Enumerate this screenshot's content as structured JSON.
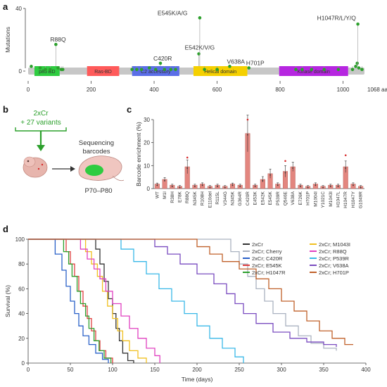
{
  "panel_labels": {
    "a": "a",
    "b": "b",
    "c": "c",
    "d": "d"
  },
  "colors": {
    "lollipop": "#2ca02c",
    "bar": "#e3867f",
    "red_dot": "#d62728",
    "arrow": "#2ca02c"
  },
  "chart_data": [
    {
      "type": "lollipop",
      "panel": "a",
      "ylabel": "Mutations",
      "ylim": [
        0,
        40
      ],
      "yticks": [
        0,
        40
      ],
      "xlim": [
        0,
        1068
      ],
      "xticks": [
        0,
        200,
        400,
        600,
        800,
        1000
      ],
      "x_end_label": "1068 aa",
      "domains": [
        {
          "label": "p85 BD",
          "start": 20,
          "end": 100,
          "color": "#2ecc40"
        },
        {
          "label": "Ras-BD",
          "start": 187,
          "end": 289,
          "color": "#ff5a5a"
        },
        {
          "label": "C2 accessory",
          "start": 330,
          "end": 480,
          "color": "#5b6ee8"
        },
        {
          "label": "Helical domain",
          "start": 525,
          "end": 696,
          "color": "#f5d000"
        },
        {
          "label": "Kinase domain",
          "start": 797,
          "end": 1016,
          "color": "#b626e0"
        }
      ],
      "mutations": [
        {
          "pos": 10,
          "count": 3
        },
        {
          "pos": 38,
          "count": 2
        },
        {
          "pos": 55,
          "count": 1
        },
        {
          "pos": 70,
          "count": 1
        },
        {
          "pos": 88,
          "count": 17,
          "label": "R88Q"
        },
        {
          "pos": 95,
          "count": 2
        },
        {
          "pos": 105,
          "count": 1
        },
        {
          "pos": 110,
          "count": 1
        },
        {
          "pos": 330,
          "count": 1
        },
        {
          "pos": 345,
          "count": 1
        },
        {
          "pos": 360,
          "count": 1
        },
        {
          "pos": 385,
          "count": 2
        },
        {
          "pos": 405,
          "count": 1
        },
        {
          "pos": 420,
          "count": 5,
          "label": "C420R"
        },
        {
          "pos": 433,
          "count": 1
        },
        {
          "pos": 453,
          "count": 1
        },
        {
          "pos": 468,
          "count": 1
        },
        {
          "pos": 542,
          "count": 11,
          "label": "E542K/V/G"
        },
        {
          "pos": 545,
          "count": 34,
          "label": "E545K/A/G"
        },
        {
          "pos": 560,
          "count": 1
        },
        {
          "pos": 600,
          "count": 1
        },
        {
          "pos": 640,
          "count": 3,
          "label": "V638A"
        },
        {
          "pos": 701,
          "count": 2,
          "label": "H701P"
        },
        {
          "pos": 850,
          "count": 1
        },
        {
          "pos": 870,
          "count": 1
        },
        {
          "pos": 900,
          "count": 1
        },
        {
          "pos": 940,
          "count": 1
        },
        {
          "pos": 985,
          "count": 1
        },
        {
          "pos": 1030,
          "count": 1
        },
        {
          "pos": 1040,
          "count": 3
        },
        {
          "pos": 1045,
          "count": 5
        },
        {
          "pos": 1047,
          "count": 30,
          "label": "H1047R/L/Y/Q"
        },
        {
          "pos": 1050,
          "count": 2
        },
        {
          "pos": 1060,
          "count": 1
        }
      ]
    },
    {
      "type": "bar",
      "panel": "c",
      "ylabel": "Barcode enrichment (%)",
      "ylim": [
        0,
        30
      ],
      "yticks": [
        0,
        10,
        20,
        30
      ],
      "categories": [
        "WT",
        "M1I",
        "R38H",
        "E78K",
        "R88Q",
        "N345K",
        "R108H",
        "E110del",
        "R115L",
        "V344G",
        "N345K",
        "G364R",
        "C420R",
        "E453K",
        "E542K",
        "E545K",
        "P539R",
        "Q546E",
        "V638A",
        "E726K",
        "H701P",
        "M1004I",
        "Y1021C",
        "M1043I",
        "H1047L",
        "H1047R",
        "H1047Y",
        "G1049R"
      ],
      "values": [
        2.0,
        4.0,
        1.5,
        1.0,
        9.5,
        1.5,
        2.0,
        1.0,
        1.5,
        1.0,
        2.0,
        1.5,
        24.0,
        1.5,
        4.0,
        6.5,
        2.0,
        7.5,
        9.5,
        1.5,
        1.0,
        2.0,
        1.0,
        1.5,
        1.5,
        9.5,
        2.0,
        1.0
      ],
      "errors": [
        0.4,
        0.8,
        0.4,
        0.3,
        3.0,
        0.4,
        0.5,
        0.3,
        0.4,
        0.3,
        0.4,
        0.4,
        8.0,
        0.4,
        1.2,
        2.0,
        0.5,
        2.5,
        2.0,
        0.4,
        0.3,
        0.5,
        0.3,
        0.4,
        0.4,
        2.5,
        0.5,
        0.3
      ],
      "outliers": [
        {
          "index": 4,
          "value": 13.5
        },
        {
          "index": 12,
          "value": 36
        },
        {
          "index": 17,
          "value": 12
        },
        {
          "index": 25,
          "value": 14.5
        }
      ]
    },
    {
      "type": "line",
      "panel": "d",
      "subtype": "kaplan-meier",
      "xlabel": "Time (days)",
      "ylabel": "Survival (%)",
      "xlim": [
        0,
        400
      ],
      "ylim": [
        0,
        100
      ],
      "xticks": [
        0,
        50,
        100,
        150,
        200,
        250,
        300,
        350,
        400
      ],
      "yticks": [
        0,
        20,
        40,
        60,
        80,
        100
      ],
      "series": [
        {
          "name": "2xCr",
          "color": "#333333",
          "steps": [
            [
              0,
              100
            ],
            [
              75,
              100
            ],
            [
              80,
              92
            ],
            [
              85,
              80
            ],
            [
              90,
              66
            ],
            [
              95,
              52
            ],
            [
              100,
              40
            ],
            [
              104,
              28
            ],
            [
              108,
              18
            ],
            [
              112,
              8
            ],
            [
              118,
              2
            ],
            [
              125,
              0
            ]
          ]
        },
        {
          "name": "2xCr; Cherry",
          "color": "#aab2c0",
          "steps": [
            [
              0,
              100
            ],
            [
              230,
              100
            ],
            [
              240,
              90
            ],
            [
              250,
              80
            ],
            [
              260,
              70
            ],
            [
              270,
              60
            ],
            [
              280,
              50
            ],
            [
              290,
              40
            ],
            [
              305,
              30
            ],
            [
              320,
              22
            ],
            [
              335,
              16
            ],
            [
              350,
              12
            ],
            [
              365,
              10
            ]
          ]
        },
        {
          "name": "2xCr; C420R",
          "color": "#2960c8",
          "steps": [
            [
              0,
              100
            ],
            [
              25,
              100
            ],
            [
              32,
              88
            ],
            [
              40,
              75
            ],
            [
              45,
              62
            ],
            [
              50,
              50
            ],
            [
              55,
              40
            ],
            [
              60,
              30
            ],
            [
              65,
              22
            ],
            [
              72,
              15
            ],
            [
              80,
              8
            ],
            [
              88,
              3
            ],
            [
              95,
              0
            ]
          ]
        },
        {
          "name": "2xCr; E545K",
          "color": "#e04040",
          "steps": [
            [
              0,
              100
            ],
            [
              40,
              100
            ],
            [
              45,
              90
            ],
            [
              50,
              80
            ],
            [
              55,
              70
            ],
            [
              60,
              58
            ],
            [
              65,
              46
            ],
            [
              70,
              36
            ],
            [
              75,
              26
            ],
            [
              80,
              18
            ],
            [
              85,
              10
            ],
            [
              92,
              4
            ],
            [
              100,
              0
            ]
          ]
        },
        {
          "name": "2xCr; H1047R",
          "color": "#2ca02c",
          "steps": [
            [
              0,
              100
            ],
            [
              35,
              100
            ],
            [
              42,
              90
            ],
            [
              48,
              80
            ],
            [
              52,
              70
            ],
            [
              58,
              58
            ],
            [
              62,
              48
            ],
            [
              68,
              38
            ],
            [
              72,
              28
            ],
            [
              78,
              18
            ],
            [
              84,
              10
            ],
            [
              90,
              4
            ],
            [
              98,
              0
            ]
          ]
        },
        {
          "name": "2xCr; M1043I",
          "color": "#f0c020",
          "steps": [
            [
              0,
              100
            ],
            [
              60,
              100
            ],
            [
              68,
              90
            ],
            [
              75,
              80
            ],
            [
              82,
              70
            ],
            [
              88,
              58
            ],
            [
              94,
              46
            ],
            [
              100,
              36
            ],
            [
              106,
              26
            ],
            [
              112,
              18
            ],
            [
              120,
              10
            ],
            [
              130,
              4
            ],
            [
              140,
              0
            ]
          ]
        },
        {
          "name": "2xCr; R88Q",
          "color": "#e040c0",
          "steps": [
            [
              0,
              100
            ],
            [
              55,
              100
            ],
            [
              62,
              92
            ],
            [
              70,
              84
            ],
            [
              78,
              76
            ],
            [
              85,
              68
            ],
            [
              92,
              58
            ],
            [
              100,
              48
            ],
            [
              110,
              38
            ],
            [
              120,
              28
            ],
            [
              130,
              20
            ],
            [
              140,
              12
            ],
            [
              150,
              6
            ],
            [
              156,
              0
            ]
          ]
        },
        {
          "name": "2xCr; P539R",
          "color": "#38b8e8",
          "steps": [
            [
              0,
              100
            ],
            [
              100,
              100
            ],
            [
              110,
              92
            ],
            [
              125,
              82
            ],
            [
              140,
              72
            ],
            [
              155,
              60
            ],
            [
              170,
              50
            ],
            [
              185,
              40
            ],
            [
              200,
              30
            ],
            [
              215,
              20
            ],
            [
              230,
              12
            ],
            [
              245,
              5
            ],
            [
              255,
              0
            ]
          ]
        },
        {
          "name": "2xCr; V638A",
          "color": "#7a4cc0",
          "steps": [
            [
              0,
              100
            ],
            [
              140,
              100
            ],
            [
              150,
              94
            ],
            [
              165,
              88
            ],
            [
              180,
              80
            ],
            [
              200,
              72
            ],
            [
              220,
              64
            ],
            [
              235,
              56
            ],
            [
              245,
              48
            ],
            [
              255,
              40
            ],
            [
              270,
              32
            ],
            [
              290,
              25
            ],
            [
              310,
              20
            ],
            [
              330,
              17
            ],
            [
              350,
              15
            ],
            [
              365,
              13
            ]
          ]
        },
        {
          "name": "2xCr; H701P",
          "color": "#c0602a",
          "steps": [
            [
              0,
              100
            ],
            [
              190,
              100
            ],
            [
              200,
              94
            ],
            [
              215,
              88
            ],
            [
              230,
              82
            ],
            [
              250,
              76
            ],
            [
              270,
              68
            ],
            [
              285,
              60
            ],
            [
              300,
              50
            ],
            [
              315,
              42
            ],
            [
              330,
              34
            ],
            [
              345,
              26
            ],
            [
              360,
              20
            ],
            [
              375,
              15
            ],
            [
              385,
              15
            ]
          ]
        }
      ]
    }
  ],
  "panel_b": {
    "pool_line1": "2xCr",
    "pool_line2": "+ 27 variants",
    "sequencing_line1": "Sequencing",
    "sequencing_line2": "barcodes",
    "age_range": "P70–P80"
  }
}
